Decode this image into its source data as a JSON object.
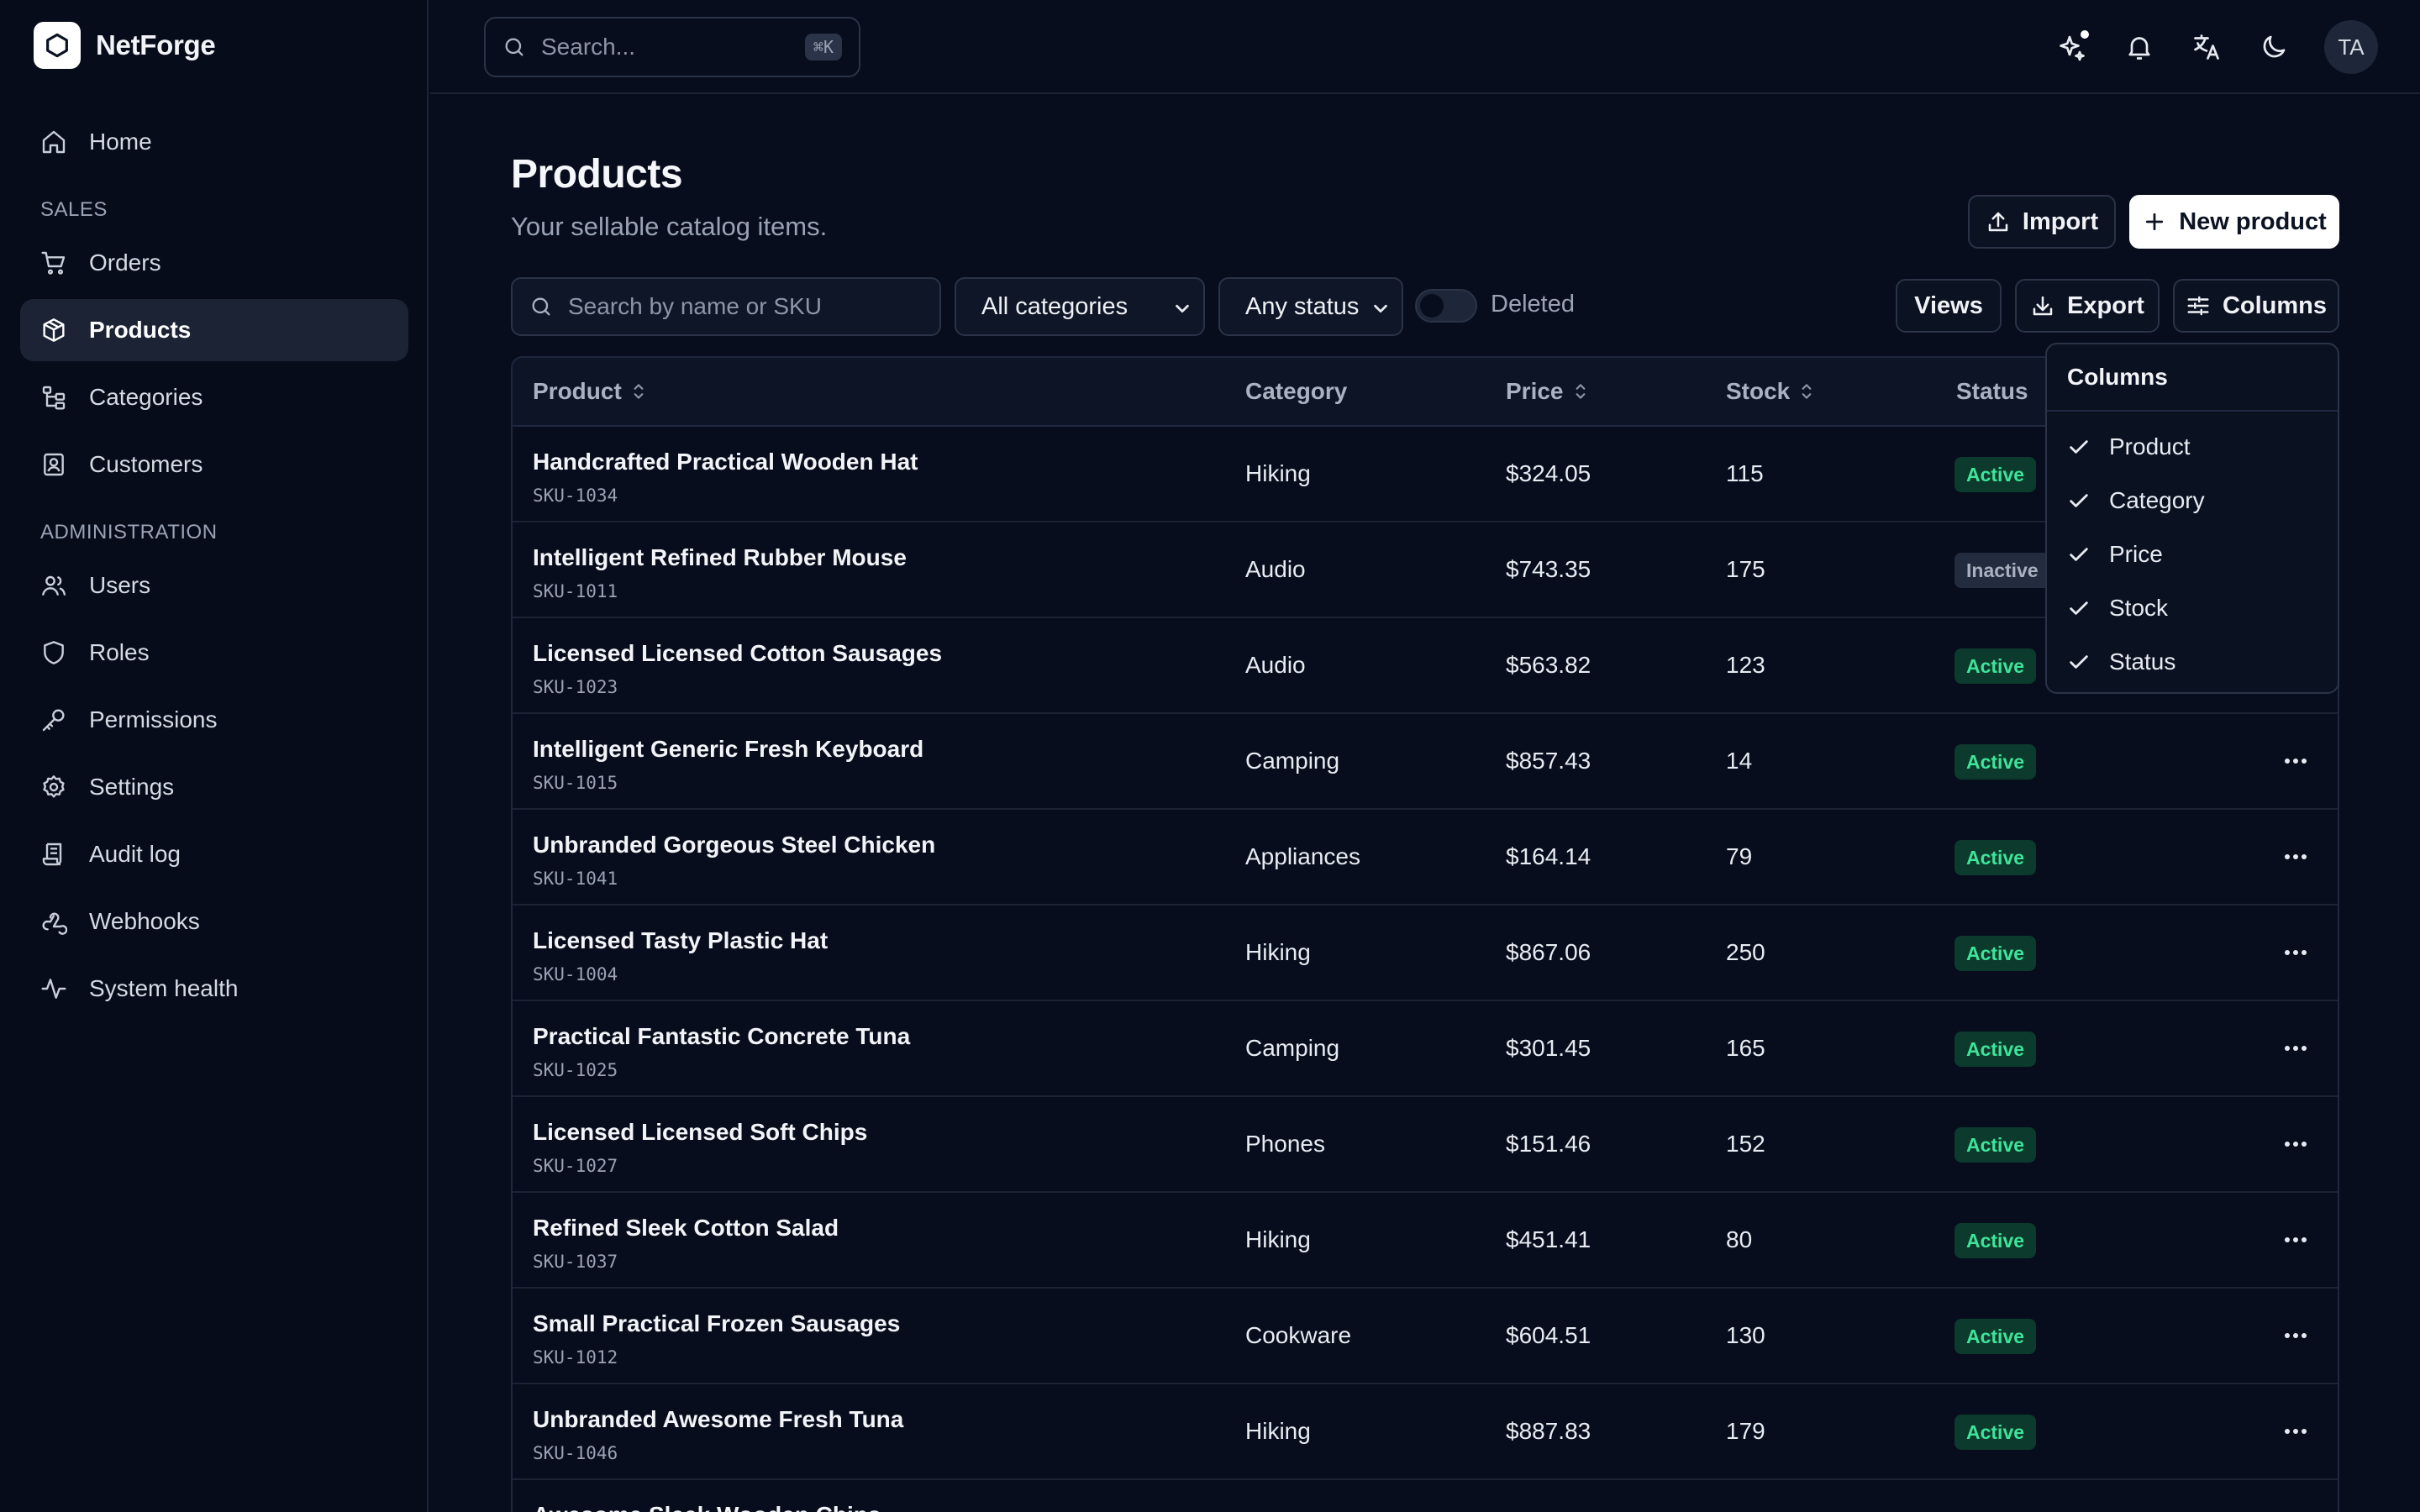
{
  "app": {
    "name": "NetForge"
  },
  "sidebar": {
    "home": {
      "label": "Home"
    },
    "sections": {
      "sales": "SALES",
      "admin": "ADMINISTRATION"
    },
    "sales_items": [
      {
        "label": "Orders",
        "icon": "cart-icon"
      },
      {
        "label": "Products",
        "icon": "box-icon",
        "active": true
      },
      {
        "label": "Categories",
        "icon": "tree-icon"
      },
      {
        "label": "Customers",
        "icon": "contact-icon"
      }
    ],
    "admin_items": [
      {
        "label": "Users",
        "icon": "users-icon"
      },
      {
        "label": "Roles",
        "icon": "shield-icon"
      },
      {
        "label": "Permissions",
        "icon": "key-icon"
      },
      {
        "label": "Settings",
        "icon": "gear-icon"
      },
      {
        "label": "Audit log",
        "icon": "scroll-icon"
      },
      {
        "label": "Webhooks",
        "icon": "webhook-icon"
      },
      {
        "label": "System health",
        "icon": "activity-icon"
      }
    ]
  },
  "topbar": {
    "search_placeholder": "Search...",
    "search_shortcut": "⌘K",
    "avatar_initials": "TA"
  },
  "page": {
    "title": "Products",
    "subtitle": "Your sellable catalog items.",
    "import_label": "Import",
    "new_label": "New product"
  },
  "filters": {
    "search_placeholder": "Search by name or SKU",
    "category": "All categories",
    "status": "Any status",
    "deleted_label": "Deleted",
    "views_label": "Views",
    "export_label": "Export",
    "columns_label": "Columns"
  },
  "table": {
    "headers": {
      "product": "Product",
      "category": "Category",
      "price": "Price",
      "stock": "Stock",
      "status": "Status"
    },
    "rows": [
      {
        "name": "Handcrafted Practical Wooden Hat",
        "sku": "SKU-1034",
        "category": "Hiking",
        "price": "$324.05",
        "stock": "115",
        "status": "Active"
      },
      {
        "name": "Intelligent Refined Rubber Mouse",
        "sku": "SKU-1011",
        "category": "Audio",
        "price": "$743.35",
        "stock": "175",
        "status": "Inactive"
      },
      {
        "name": "Licensed Licensed Cotton Sausages",
        "sku": "SKU-1023",
        "category": "Audio",
        "price": "$563.82",
        "stock": "123",
        "status": "Active"
      },
      {
        "name": "Intelligent Generic Fresh Keyboard",
        "sku": "SKU-1015",
        "category": "Camping",
        "price": "$857.43",
        "stock": "14",
        "status": "Active"
      },
      {
        "name": "Unbranded Gorgeous Steel Chicken",
        "sku": "SKU-1041",
        "category": "Appliances",
        "price": "$164.14",
        "stock": "79",
        "status": "Active"
      },
      {
        "name": "Licensed Tasty Plastic Hat",
        "sku": "SKU-1004",
        "category": "Hiking",
        "price": "$867.06",
        "stock": "250",
        "status": "Active"
      },
      {
        "name": "Practical Fantastic Concrete Tuna",
        "sku": "SKU-1025",
        "category": "Camping",
        "price": "$301.45",
        "stock": "165",
        "status": "Active"
      },
      {
        "name": "Licensed Licensed Soft Chips",
        "sku": "SKU-1027",
        "category": "Phones",
        "price": "$151.46",
        "stock": "152",
        "status": "Active"
      },
      {
        "name": "Refined Sleek Cotton Salad",
        "sku": "SKU-1037",
        "category": "Hiking",
        "price": "$451.41",
        "stock": "80",
        "status": "Active"
      },
      {
        "name": "Small Practical Frozen Sausages",
        "sku": "SKU-1012",
        "category": "Cookware",
        "price": "$604.51",
        "stock": "130",
        "status": "Active"
      },
      {
        "name": "Unbranded Awesome Fresh Tuna",
        "sku": "SKU-1046",
        "category": "Hiking",
        "price": "$887.83",
        "stock": "179",
        "status": "Active"
      },
      {
        "name": "Awesome Sleek Wooden Chips",
        "sku": "",
        "category": "",
        "price": "",
        "stock": "",
        "status": ""
      }
    ]
  },
  "columns_menu": {
    "title": "Columns",
    "items": [
      "Product",
      "Category",
      "Price",
      "Stock",
      "Status"
    ]
  }
}
